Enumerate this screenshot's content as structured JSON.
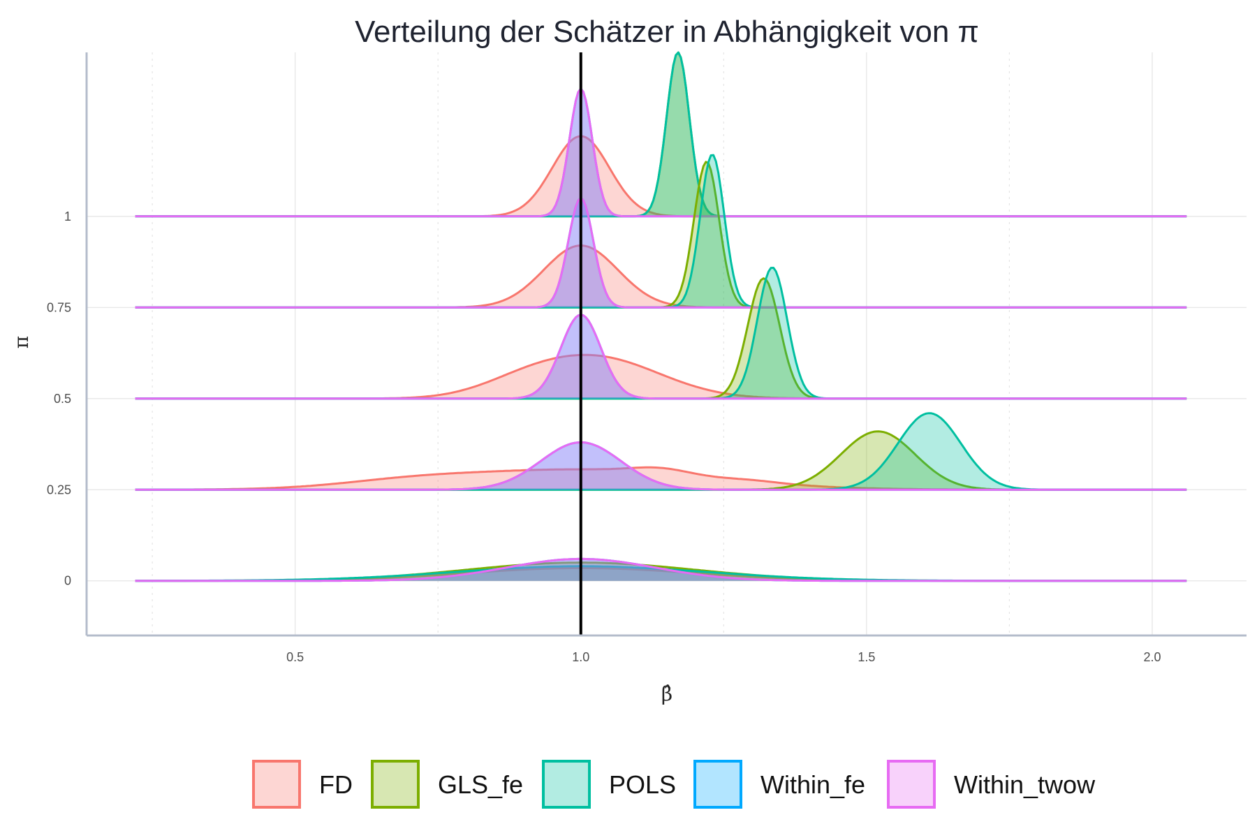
{
  "chart_data": {
    "type": "area",
    "subtype": "ridgeline-density",
    "title": "Verteilung der Schätzer in Abhängigkeit von π",
    "xlabel": "β̂",
    "ylabel": "π",
    "xlim": [
      0.135,
      2.165
    ],
    "ylim": [
      -0.15,
      1.45
    ],
    "x_ticks": [
      0.5,
      1.0,
      1.5,
      2.0
    ],
    "x_tick_labels": [
      "0.5",
      "1.0",
      "1.5",
      "2.0"
    ],
    "y_ticks": [
      0,
      0.25,
      0.5,
      0.75,
      1
    ],
    "y_tick_labels": [
      "0",
      "0.25",
      "0.5",
      "0.75",
      "1"
    ],
    "reference_line_x": 1.0,
    "legend_position": "bottom",
    "series": [
      {
        "name": "FD",
        "color": "#F8766D",
        "ridges": [
          {
            "pi": 0,
            "components": [
              [
                1.0,
                0.2,
                0.035
              ]
            ]
          },
          {
            "pi": 0.25,
            "components": [
              [
                1.0,
                0.22,
                0.055
              ],
              [
                0.7,
                0.12,
                0.015
              ],
              [
                1.14,
                0.05,
                0.015
              ],
              [
                1.3,
                0.05,
                0.005
              ]
            ]
          },
          {
            "pi": 0.5,
            "components": [
              [
                1.03,
                0.11,
                0.11
              ],
              [
                0.9,
                0.08,
                0.03
              ]
            ]
          },
          {
            "pi": 0.75,
            "components": [
              [
                1.0,
                0.065,
                0.17
              ]
            ]
          },
          {
            "pi": 1,
            "components": [
              [
                1.0,
                0.05,
                0.22
              ]
            ]
          }
        ]
      },
      {
        "name": "GLS_fe",
        "color": "#7CAE00",
        "ridges": [
          {
            "pi": 0,
            "components": [
              [
                1.0,
                0.2,
                0.05
              ]
            ]
          },
          {
            "pi": 0.25,
            "components": [
              [
                1.52,
                0.065,
                0.16
              ]
            ]
          },
          {
            "pi": 0.5,
            "components": [
              [
                1.32,
                0.028,
                0.33
              ]
            ]
          },
          {
            "pi": 0.75,
            "components": [
              [
                1.22,
                0.022,
                0.4
              ]
            ]
          },
          {
            "pi": 1,
            "components": [
              [
                1.17,
                0.02,
                0.45
              ]
            ]
          }
        ]
      },
      {
        "name": "POLS",
        "color": "#00BFA0",
        "ridges": [
          {
            "pi": 0,
            "components": [
              [
                1.0,
                0.22,
                0.04
              ]
            ]
          },
          {
            "pi": 0.25,
            "components": [
              [
                1.61,
                0.055,
                0.21
              ]
            ]
          },
          {
            "pi": 0.5,
            "components": [
              [
                1.335,
                0.026,
                0.36
              ]
            ]
          },
          {
            "pi": 0.75,
            "components": [
              [
                1.23,
                0.021,
                0.42
              ]
            ]
          },
          {
            "pi": 1,
            "components": [
              [
                1.17,
                0.02,
                0.45
              ]
            ]
          }
        ]
      },
      {
        "name": "Within_fe",
        "color": "#00A9FF",
        "ridges": [
          {
            "pi": 0,
            "components": [
              [
                1.0,
                0.13,
                0.06
              ]
            ]
          },
          {
            "pi": 0.25,
            "components": [
              [
                1.0,
                0.07,
                0.13
              ]
            ]
          },
          {
            "pi": 0.5,
            "components": [
              [
                1.0,
                0.035,
                0.23
              ]
            ]
          },
          {
            "pi": 0.75,
            "components": [
              [
                1.0,
                0.022,
                0.3
              ]
            ]
          },
          {
            "pi": 1,
            "components": [
              [
                1.0,
                0.02,
                0.35
              ]
            ]
          }
        ]
      },
      {
        "name": "Within_twow",
        "color": "#E76BF3",
        "ridges": [
          {
            "pi": 0,
            "components": [
              [
                1.0,
                0.13,
                0.06
              ]
            ]
          },
          {
            "pi": 0.25,
            "components": [
              [
                1.0,
                0.07,
                0.13
              ]
            ]
          },
          {
            "pi": 0.5,
            "components": [
              [
                1.0,
                0.035,
                0.23
              ]
            ]
          },
          {
            "pi": 0.75,
            "components": [
              [
                1.0,
                0.022,
                0.3
              ]
            ]
          },
          {
            "pi": 1,
            "components": [
              [
                1.0,
                0.02,
                0.35
              ]
            ]
          }
        ]
      }
    ]
  }
}
